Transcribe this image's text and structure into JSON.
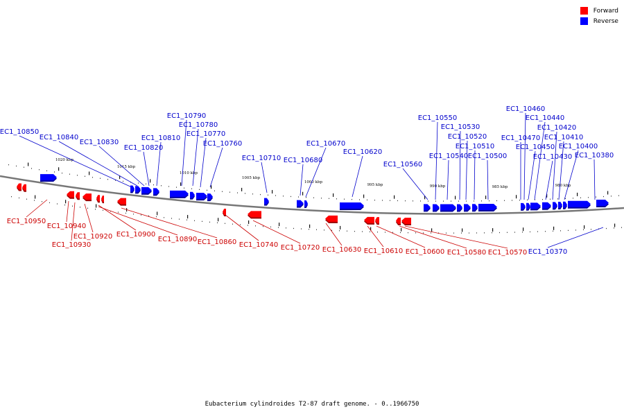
{
  "legend": [
    {
      "label": "Forward",
      "color": "#ff0000"
    },
    {
      "label": "Reverse",
      "color": "#0000ff"
    }
  ],
  "caption": "Eubacterium cylindroides T2-87 draft genome. - 0..1966750",
  "kbp_labels": [
    "1020 kbp",
    "1015 kbp",
    "1010 kbp",
    "1005 kbp",
    "1000 kbp",
    "995 kbp",
    "990 kbp",
    "985 kbp",
    "980 kbp"
  ],
  "genes": [
    {
      "id": "EC1_10850",
      "strand": "reverse"
    },
    {
      "id": "EC1_10840",
      "strand": "reverse"
    },
    {
      "id": "EC1_10830",
      "strand": "reverse"
    },
    {
      "id": "EC1_10820",
      "strand": "reverse"
    },
    {
      "id": "EC1_10810",
      "strand": "reverse"
    },
    {
      "id": "EC1_10790",
      "strand": "reverse"
    },
    {
      "id": "EC1_10780",
      "strand": "reverse"
    },
    {
      "id": "EC1_10770",
      "strand": "reverse"
    },
    {
      "id": "EC1_10760",
      "strand": "reverse"
    },
    {
      "id": "EC1_10710",
      "strand": "reverse"
    },
    {
      "id": "EC1_10680",
      "strand": "reverse"
    },
    {
      "id": "EC1_10670",
      "strand": "reverse"
    },
    {
      "id": "EC1_10620",
      "strand": "reverse"
    },
    {
      "id": "EC1_10560",
      "strand": "reverse"
    },
    {
      "id": "EC1_10550",
      "strand": "reverse"
    },
    {
      "id": "EC1_10540",
      "strand": "reverse"
    },
    {
      "id": "EC1_10530",
      "strand": "reverse"
    },
    {
      "id": "EC1_10520",
      "strand": "reverse"
    },
    {
      "id": "EC1_10510",
      "strand": "reverse"
    },
    {
      "id": "EC1_10500",
      "strand": "reverse"
    },
    {
      "id": "EC1_10460",
      "strand": "reverse"
    },
    {
      "id": "EC1_10470",
      "strand": "reverse"
    },
    {
      "id": "EC1_10450",
      "strand": "reverse"
    },
    {
      "id": "EC1_10440",
      "strand": "reverse"
    },
    {
      "id": "EC1_10430",
      "strand": "reverse"
    },
    {
      "id": "EC1_10420",
      "strand": "reverse"
    },
    {
      "id": "EC1_10410",
      "strand": "reverse"
    },
    {
      "id": "EC1_10400",
      "strand": "reverse"
    },
    {
      "id": "EC1_10380",
      "strand": "reverse"
    },
    {
      "id": "EC1_10950",
      "strand": "forward"
    },
    {
      "id": "EC1_10940",
      "strand": "forward"
    },
    {
      "id": "EC1_10930",
      "strand": "forward"
    },
    {
      "id": "EC1_10920",
      "strand": "forward"
    },
    {
      "id": "EC1_10900",
      "strand": "forward"
    },
    {
      "id": "EC1_10890",
      "strand": "forward"
    },
    {
      "id": "EC1_10860",
      "strand": "forward"
    },
    {
      "id": "EC1_10740",
      "strand": "forward"
    },
    {
      "id": "EC1_10720",
      "strand": "forward"
    },
    {
      "id": "EC1_10630",
      "strand": "forward"
    },
    {
      "id": "EC1_10610",
      "strand": "forward"
    },
    {
      "id": "EC1_10600",
      "strand": "forward"
    },
    {
      "id": "EC1_10580",
      "strand": "forward"
    },
    {
      "id": "EC1_10570",
      "strand": "forward"
    },
    {
      "id": "EC1_10370",
      "strand": "reverse"
    }
  ]
}
